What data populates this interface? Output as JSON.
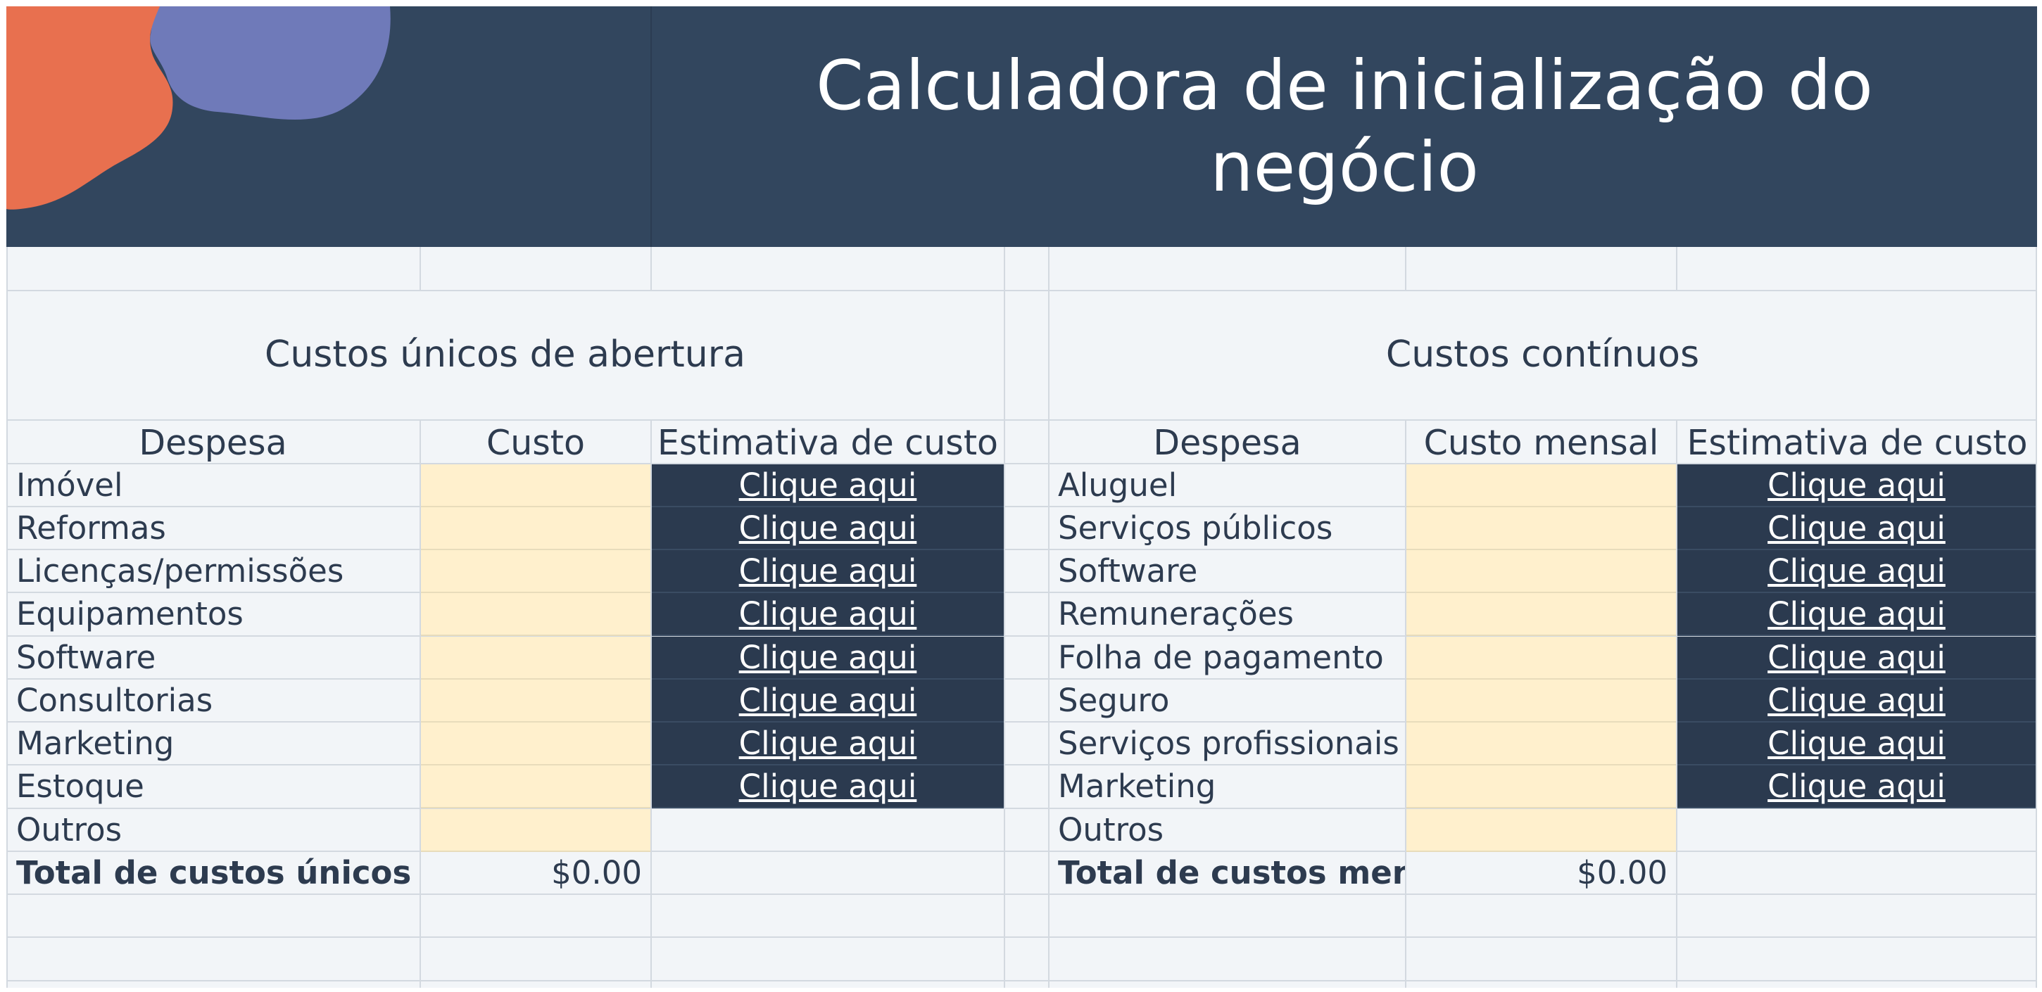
{
  "title": "Calculadora de inicialização do negócio",
  "colors": {
    "header_bg": "#32465e",
    "sheet_bg": "#f2f5f8",
    "input_bg": "#fff0cd",
    "link_cell_bg": "#2b3a4f",
    "blob_orange": "#e8704f",
    "blob_purple": "#6f7ab9"
  },
  "left": {
    "section_title": "Custos únicos de abertura",
    "headers": [
      "Despesa",
      "Custo",
      "Estimativa de custo"
    ],
    "rows": [
      {
        "label": "Imóvel",
        "link": "Clique aqui"
      },
      {
        "label": "Reformas",
        "link": "Clique aqui"
      },
      {
        "label": "Licenças/permissões",
        "link": "Clique aqui"
      },
      {
        "label": "Equipamentos",
        "link": "Clique aqui"
      },
      {
        "label": "Software",
        "link": "Clique aqui"
      },
      {
        "label": "Consultorias",
        "link": "Clique aqui"
      },
      {
        "label": "Marketing",
        "link": "Clique aqui"
      },
      {
        "label": "Estoque",
        "link": "Clique aqui"
      },
      {
        "label": "Outros",
        "link": ""
      }
    ],
    "total_label": "Total de custos únicos",
    "total_value": "$0.00"
  },
  "right": {
    "section_title": "Custos contínuos",
    "headers": [
      "Despesa",
      "Custo mensal",
      "Estimativa de custo"
    ],
    "rows": [
      {
        "label": "Aluguel",
        "link": "Clique aqui"
      },
      {
        "label": "Serviços públicos",
        "link": "Clique aqui"
      },
      {
        "label": "Software",
        "link": "Clique aqui"
      },
      {
        "label": "Remunerações",
        "link": "Clique aqui"
      },
      {
        "label": "Folha de pagamento",
        "link": "Clique aqui"
      },
      {
        "label": "Seguro",
        "link": "Clique aqui"
      },
      {
        "label": "Serviços profissionais",
        "link": "Clique aqui"
      },
      {
        "label": "Marketing",
        "link": "Clique aqui"
      },
      {
        "label": "Outros",
        "link": ""
      }
    ],
    "total_label": "Total de custos mensais",
    "total_value": "$0.00"
  }
}
